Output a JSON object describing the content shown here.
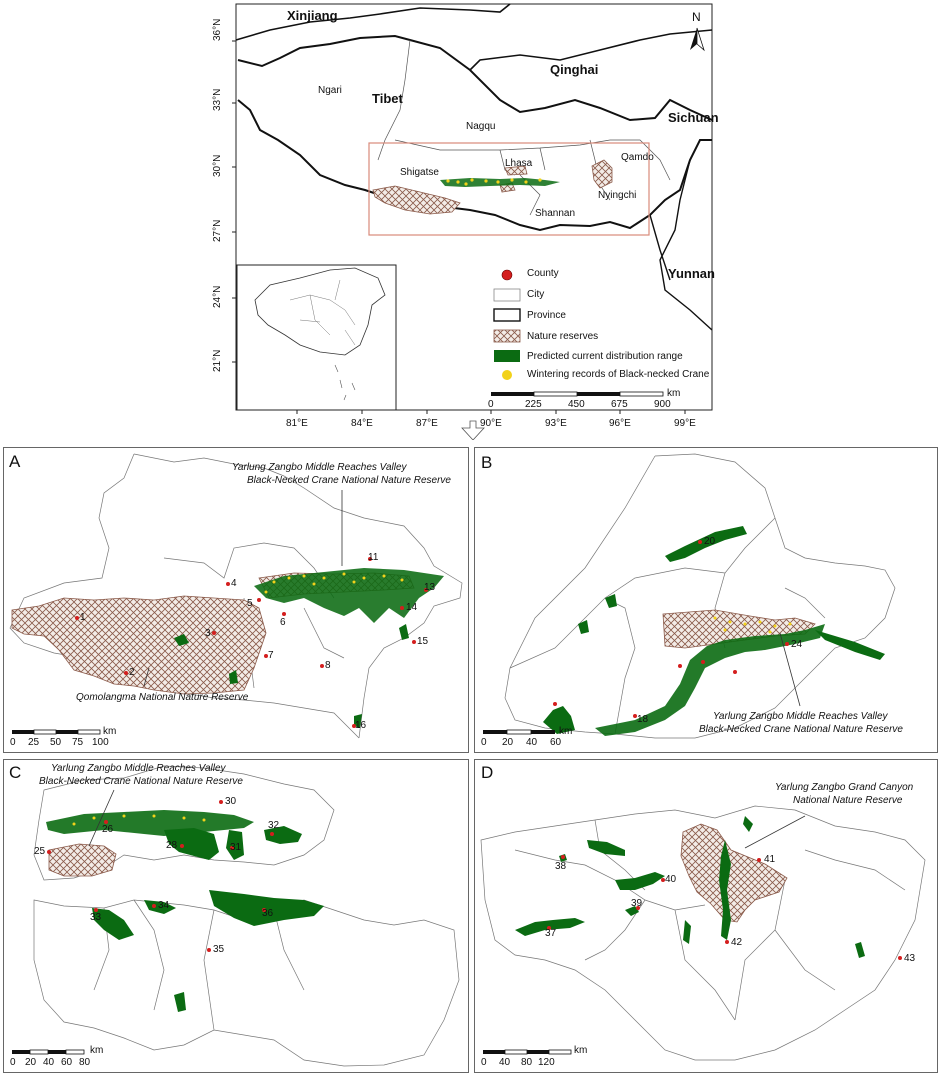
{
  "overview": {
    "lat_labels": [
      "36°N",
      "33°N",
      "30°N",
      "27°N",
      "24°N",
      "21°N"
    ],
    "lon_labels": [
      "81°E",
      "84°E",
      "87°E",
      "90°E",
      "93°E",
      "96°E",
      "99°E"
    ],
    "regions": {
      "xinjiang": "Xinjiang",
      "qinghai": "Qinghai",
      "tibet": "Tibet",
      "sichuan": "Sichuan",
      "yunnan": "Yunnan",
      "ngari": "Ngari",
      "nagqu": "Nagqu",
      "qamdo": "Qamdo",
      "lhasa": "Lhasa",
      "shigatse": "Shigatse",
      "shannan": "Shannan",
      "nyingchi": "Nyingchi"
    },
    "north": "N"
  },
  "legend": {
    "county": "County",
    "city": "City",
    "province": "Province",
    "reserves": "Nature reserves",
    "distribution": "Predicted current distribution range",
    "wintering": "Wintering records of Black-necked Crane"
  },
  "overview_scale": {
    "unit": "km",
    "ticks": [
      "0",
      "225",
      "450",
      "675",
      "900"
    ]
  },
  "panels": {
    "A": {
      "letter": "A",
      "annotation_top_1": "Yarlung Zangbo Middle Reaches Valley",
      "annotation_top_2": "Black-Necked Crane National Nature Reserve",
      "annotation_bottom": "Qomolangma National Nature Reserve",
      "scale_unit": "km",
      "scale_ticks": [
        "0",
        "25",
        "50",
        "75",
        "100"
      ],
      "counties": [
        "1",
        "2",
        "3",
        "4",
        "5",
        "6",
        "7",
        "8",
        "11",
        "13",
        "14",
        "15",
        "16"
      ]
    },
    "B": {
      "letter": "B",
      "annotation_1": "Yarlung Zangbo Middle Reaches Valley",
      "annotation_2": "Black-Necked Crane National Nature Reserve",
      "scale_unit": "km",
      "scale_ticks": [
        "0",
        "20",
        "40",
        "60"
      ],
      "counties": [
        "18",
        "20",
        "24"
      ]
    },
    "C": {
      "letter": "C",
      "annotation_1": "Yarlung Zangbo Middle Reaches Valley",
      "annotation_2": "Black-Necked Crane National Nature Reserve",
      "scale_unit": "km",
      "scale_ticks": [
        "0",
        "20",
        "40",
        "60",
        "80"
      ],
      "counties": [
        "25",
        "26",
        "28",
        "30",
        "31",
        "32",
        "33",
        "34",
        "35",
        "36"
      ]
    },
    "D": {
      "letter": "D",
      "annotation_1": "Yarlung Zangbo Grand Canyon",
      "annotation_2": "National Nature Reserve",
      "scale_unit": "km",
      "scale_ticks": [
        "0",
        "40",
        "80",
        "120"
      ],
      "counties": [
        "37",
        "38",
        "39",
        "40",
        "41",
        "42",
        "43"
      ]
    }
  },
  "colors": {
    "distribution": "#0b6b12",
    "county": "#d41e1e",
    "wintering": "#f2d21a",
    "reserve_stroke": "#8a5a4a",
    "study_box": "#d98a7a"
  }
}
